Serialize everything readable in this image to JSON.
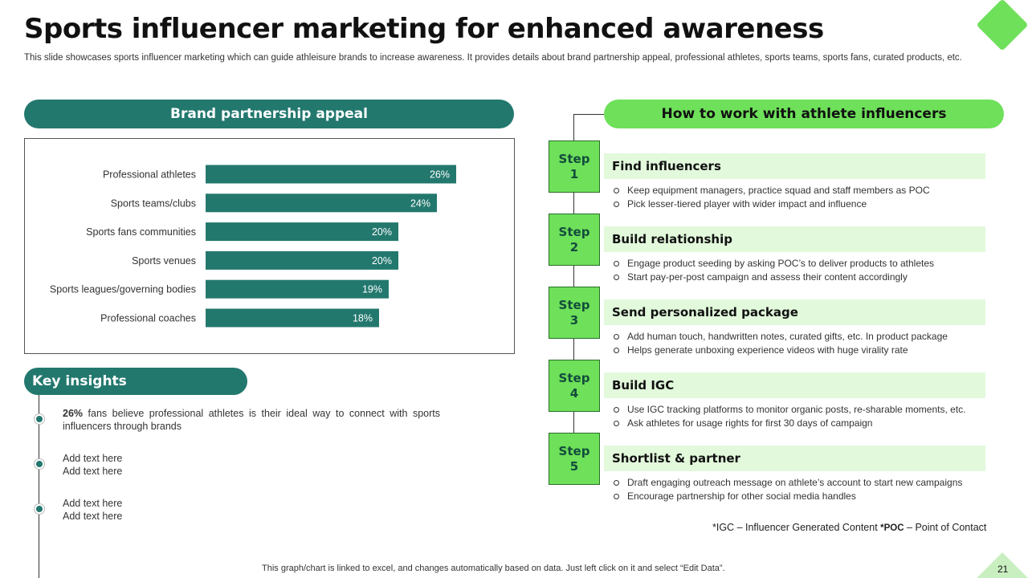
{
  "title": "Sports influencer marketing for enhanced awareness",
  "subtitle": "This slide showcases sports influencer marketing which can guide athleisure brands to increase awareness. It provides details about brand partnership appeal, professional athletes, sports teams, sports fans, curated products, etc.",
  "left_header": "Brand partnership appeal",
  "chart_data": {
    "type": "bar",
    "orientation": "horizontal",
    "categories": [
      "Professional athletes",
      "Sports teams/clubs",
      "Sports fans communities",
      "Sports venues",
      "Sports leagues/governing bodies",
      "Professional coaches"
    ],
    "values": [
      26,
      24,
      20,
      20,
      19,
      18
    ],
    "value_labels": [
      "26%",
      "24%",
      "20%",
      "20%",
      "19%",
      "18%"
    ],
    "xlim": [
      0,
      30
    ],
    "bar_color": "#23786e",
    "grid": false,
    "legend": "none"
  },
  "insights": {
    "header": "Key insights",
    "item1_bold": "26%",
    "item1_rest": " fans believe professional athletes is their ideal way to connect with sports influencers through brands",
    "item2_line1": "Add text here",
    "item2_line2": "Add text here",
    "item3_line1": "Add text here",
    "item3_line2": "Add text here"
  },
  "right_header": "How to work with athlete influencers",
  "steps": [
    {
      "word": "Step",
      "num": "1",
      "title": "Find influencers",
      "b1": "Keep equipment managers, practice squad and staff members as POC",
      "b2": "Pick lesser-tiered player with wider impact and influence"
    },
    {
      "word": "Step",
      "num": "2",
      "title": "Build relationship",
      "b1": "Engage product seeding by asking POC’s to deliver products to athletes",
      "b2": "Start pay-per-post campaign and assess their content accordingly"
    },
    {
      "word": "Step",
      "num": "3",
      "title": "Send personalized package",
      "b1": "Add human touch, handwritten notes, curated gifts, etc. In product package",
      "b2": "Helps generate unboxing experience videos with huge virality rate"
    },
    {
      "word": "Step",
      "num": "4",
      "title": "Build IGC",
      "b1": "Use IGC tracking platforms to monitor organic posts, re-sharable moments, etc.",
      "b2": "Ask athletes for usage rights for first 30 days of campaign"
    },
    {
      "word": "Step",
      "num": "5",
      "title": "Shortlist & partner",
      "b1": "Draft engaging outreach message on athlete’s account to start new campaigns",
      "b2": "Encourage partnership for other social media handles"
    }
  ],
  "footnote": {
    "igc_abbr": "*IGC",
    "igc_def": " – Influencer  Generated  Content ",
    "poc_abbr": "*POC",
    "poc_def": " – Point of Contact"
  },
  "footer": "This graph/chart is linked to excel,  and changes automatically based on data. Just left click on it and select “Edit Data”.",
  "page_number": "21",
  "colors": {
    "dark_teal": "#23786e",
    "bright_green": "#6ee05a",
    "pale_green": "#e2f9dc"
  }
}
